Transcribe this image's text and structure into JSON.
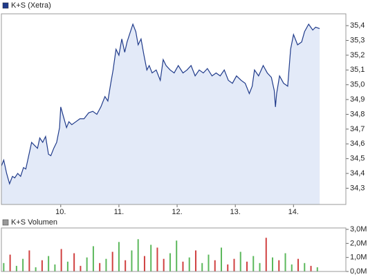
{
  "chart_data": [
    {
      "type": "area",
      "title": "K+S (Xetra)",
      "color": "#1f3a8a",
      "fill": "#e3eaf8",
      "grid": false,
      "x": [
        8.98,
        9.02,
        9.07,
        9.12,
        9.17,
        9.21,
        9.26,
        9.31,
        9.36,
        9.4,
        9.45,
        9.5,
        9.55,
        9.6,
        9.64,
        9.69,
        9.74,
        9.79,
        9.83,
        9.88,
        9.93,
        9.98,
        10.0,
        10.05,
        10.1,
        10.14,
        10.19,
        10.26,
        10.33,
        10.4,
        10.48,
        10.55,
        10.62,
        10.69,
        10.76,
        10.81,
        10.86,
        10.9,
        10.95,
        11.0,
        11.05,
        11.1,
        11.14,
        11.19,
        11.24,
        11.29,
        11.33,
        11.38,
        11.43,
        11.48,
        11.52,
        11.57,
        11.64,
        11.71,
        11.76,
        11.81,
        11.88,
        11.95,
        12.02,
        12.1,
        12.17,
        12.24,
        12.31,
        12.38,
        12.45,
        12.52,
        12.6,
        12.67,
        12.74,
        12.81,
        12.88,
        12.95,
        13.02,
        13.1,
        13.17,
        13.24,
        13.29,
        13.33,
        13.4,
        13.48,
        13.55,
        13.62,
        13.67,
        13.69,
        13.71,
        13.76,
        13.83,
        13.9,
        13.95,
        14.0,
        14.07,
        14.14,
        14.19,
        14.26,
        14.33,
        14.38,
        14.45
      ],
      "values": [
        34.45,
        34.49,
        34.4,
        34.33,
        34.38,
        34.37,
        34.4,
        34.38,
        34.44,
        34.43,
        34.52,
        34.61,
        34.59,
        34.57,
        34.64,
        34.61,
        34.65,
        34.53,
        34.52,
        34.57,
        34.61,
        34.71,
        34.85,
        34.78,
        34.71,
        34.75,
        34.73,
        34.75,
        34.77,
        34.77,
        34.81,
        34.82,
        34.8,
        34.85,
        34.92,
        34.89,
        35.01,
        35.1,
        35.24,
        35.2,
        35.31,
        35.22,
        35.29,
        35.35,
        35.41,
        35.36,
        35.27,
        35.31,
        35.2,
        35.1,
        35.13,
        35.08,
        35.1,
        35.03,
        35.17,
        35.13,
        35.1,
        35.08,
        35.13,
        35.08,
        35.1,
        35.13,
        35.06,
        35.1,
        35.08,
        35.11,
        35.06,
        35.08,
        35.06,
        35.1,
        35.03,
        35.01,
        35.06,
        35.03,
        35.01,
        34.94,
        34.99,
        35.1,
        35.06,
        35.13,
        35.08,
        35.05,
        34.96,
        34.85,
        34.94,
        35.06,
        35.01,
        34.99,
        35.24,
        35.34,
        35.27,
        35.29,
        35.36,
        35.41,
        35.37,
        35.39,
        35.38
      ],
      "xlim": [
        8.98,
        14.9
      ],
      "ylim": [
        34.19,
        35.48
      ],
      "xticks": [
        {
          "value": 10,
          "label": "10."
        },
        {
          "value": 11,
          "label": "11."
        },
        {
          "value": 12,
          "label": "12."
        },
        {
          "value": 13,
          "label": "13."
        },
        {
          "value": 14,
          "label": "14."
        }
      ],
      "yticks": [
        {
          "value": 34.3,
          "label": "34,3"
        },
        {
          "value": 34.4,
          "label": "34,4"
        },
        {
          "value": 34.5,
          "label": "34,5"
        },
        {
          "value": 34.6,
          "label": "34,6"
        },
        {
          "value": 34.7,
          "label": "34,7"
        },
        {
          "value": 34.8,
          "label": "34,8"
        },
        {
          "value": 34.9,
          "label": "34,9"
        },
        {
          "value": 35.0,
          "label": "35,0"
        },
        {
          "value": 35.1,
          "label": "35,1"
        },
        {
          "value": 35.2,
          "label": "35,2"
        },
        {
          "value": 35.3,
          "label": "35,3"
        },
        {
          "value": 35.4,
          "label": "35,4"
        }
      ]
    },
    {
      "type": "bar",
      "title": "K+S Volumen",
      "color": "#999999",
      "grid": false,
      "x": [
        9.02,
        9.13,
        9.24,
        9.35,
        9.46,
        9.57,
        9.68,
        9.79,
        9.9,
        10.01,
        10.12,
        10.23,
        10.34,
        10.45,
        10.56,
        10.67,
        10.78,
        10.89,
        11.0,
        11.11,
        11.22,
        11.33,
        11.44,
        11.55,
        11.66,
        11.77,
        11.88,
        11.99,
        12.1,
        12.21,
        12.32,
        12.43,
        12.54,
        12.65,
        12.76,
        12.87,
        12.98,
        13.09,
        13.2,
        13.31,
        13.42,
        13.53,
        13.64,
        13.75,
        13.86,
        13.97,
        14.08,
        14.19,
        14.3,
        14.41
      ],
      "values": [
        600000,
        1200000,
        400000,
        900000,
        1500000,
        300000,
        800000,
        1100000,
        500000,
        1600000,
        700000,
        1300000,
        400000,
        1000000,
        1800000,
        600000,
        900000,
        1400000,
        2100000,
        800000,
        1500000,
        2300000,
        1100000,
        1900000,
        1700000,
        900000,
        1300000,
        2200000,
        700000,
        1000000,
        1500000,
        600000,
        1200000,
        800000,
        1700000,
        500000,
        900000,
        1400000,
        700000,
        1100000,
        600000,
        2400000,
        1000000,
        800000,
        1300000,
        500000,
        900000,
        600000,
        400000,
        300000
      ],
      "colors": [
        "#5cb85c",
        "#d04040",
        "#5cb85c",
        "#5cb85c",
        "#d04040",
        "#5cb85c",
        "#d04040",
        "#5cb85c",
        "#5cb85c",
        "#d04040",
        "#5cb85c",
        "#d04040",
        "#d04040",
        "#5cb85c",
        "#5cb85c",
        "#d04040",
        "#5cb85c",
        "#d04040",
        "#5cb85c",
        "#d04040",
        "#5cb85c",
        "#5cb85c",
        "#d04040",
        "#5cb85c",
        "#d04040",
        "#d04040",
        "#5cb85c",
        "#5cb85c",
        "#d04040",
        "#5cb85c",
        "#d04040",
        "#5cb85c",
        "#5cb85c",
        "#d04040",
        "#5cb85c",
        "#d04040",
        "#d04040",
        "#5cb85c",
        "#d04040",
        "#5cb85c",
        "#5cb85c",
        "#d04040",
        "#5cb85c",
        "#d04040",
        "#5cb85c",
        "#5cb85c",
        "#d04040",
        "#5cb85c",
        "#d04040",
        "#5cb85c"
      ],
      "xlim": [
        8.98,
        14.9
      ],
      "ylim": [
        0,
        3100000
      ],
      "yticks": [
        {
          "value": 0,
          "label": "0,0M"
        },
        {
          "value": 1000000,
          "label": "1,0M"
        },
        {
          "value": 2000000,
          "label": "2,0M"
        },
        {
          "value": 3000000,
          "label": "3,0M"
        }
      ]
    }
  ]
}
